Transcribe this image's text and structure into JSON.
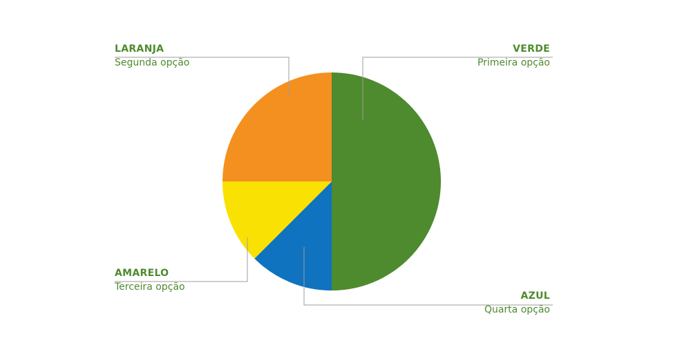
{
  "chart_data": {
    "type": "pie",
    "start_angle_deg": 0,
    "direction": "clockwise",
    "slices": [
      {
        "key": "verde",
        "label": "VERDE",
        "sublabel": "Primeira opção",
        "value": 50,
        "color": "#4e8a2e"
      },
      {
        "key": "azul",
        "label": "AZUL",
        "sublabel": "Quarta opção",
        "value": 12.5,
        "color": "#0f73bf"
      },
      {
        "key": "amarelo",
        "label": "AMARELO",
        "sublabel": "Terceira opção",
        "value": 12.5,
        "color": "#f9e104"
      },
      {
        "key": "laranja",
        "label": "LARANJA",
        "sublabel": "Segunda opção",
        "value": 25,
        "color": "#f4901f"
      }
    ],
    "leader_color": "#9e9e9e"
  }
}
